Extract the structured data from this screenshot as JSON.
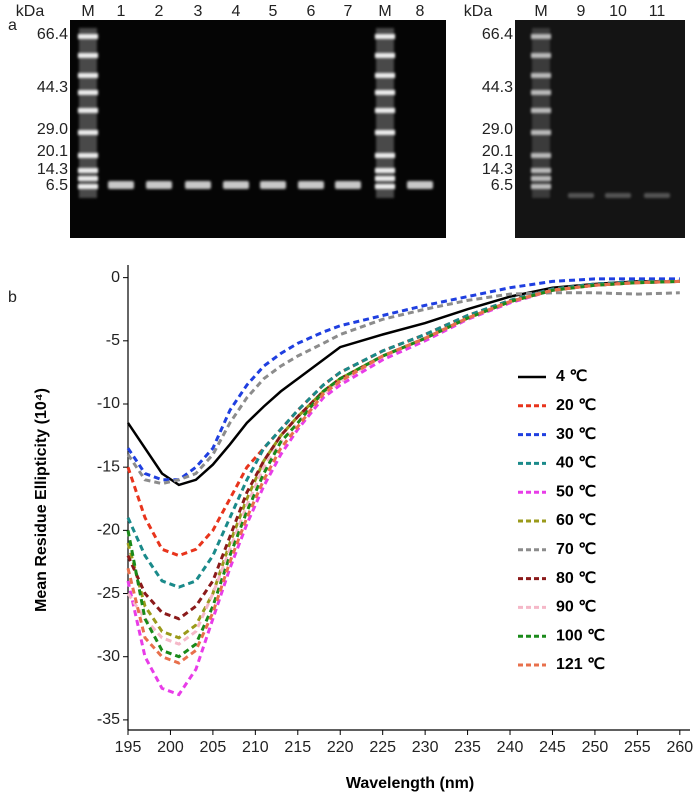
{
  "panel_labels": [
    "a",
    "b"
  ],
  "gels": [
    {
      "unit": "kDa",
      "lanes": [
        "M",
        "1",
        "2",
        "3",
        "4",
        "5",
        "6",
        "7",
        "M",
        "8"
      ],
      "markers": [
        "66.4",
        "44.3",
        "29.0",
        "20.1",
        "14.3",
        "6.5"
      ]
    },
    {
      "unit": "kDa",
      "lanes": [
        "M",
        "9",
        "10",
        "11"
      ],
      "markers": [
        "66.4",
        "44.3",
        "29.0",
        "20.1",
        "14.3",
        "6.5"
      ]
    }
  ],
  "chart_data": {
    "type": "line",
    "xlabel": "Wavelength (nm)",
    "ylabel": "Mean Residue Ellipticity (10⁴)",
    "x": [
      195,
      197,
      199,
      201,
      203,
      205,
      207,
      209,
      211,
      213,
      215,
      218,
      220,
      225,
      230,
      235,
      240,
      245,
      250,
      255,
      260
    ],
    "xlim": [
      195,
      261.2
    ],
    "xticks": [
      195,
      200,
      205,
      210,
      215,
      220,
      225,
      230,
      235,
      240,
      245,
      250,
      255,
      260
    ],
    "ylim": [
      -35.8,
      1
    ],
    "yticks": [
      -35,
      -30,
      -25,
      -20,
      -15,
      -10,
      -5,
      0
    ],
    "series": [
      {
        "name": "4 ℃",
        "color": "#000000",
        "line_style": "solid",
        "values": [
          -11.5,
          -13.5,
          -15.5,
          -16.4,
          -16,
          -14.8,
          -13.2,
          -11.5,
          -10.2,
          -9,
          -8,
          -6.5,
          -5.5,
          -4.5,
          -3.6,
          -2.5,
          -1.5,
          -0.8,
          -0.5,
          -0.3,
          -0.3
        ]
      },
      {
        "name": "20 ℃",
        "color": "#e8341c",
        "line_style": "dashed",
        "values": [
          -15,
          -19,
          -21.5,
          -22,
          -21.5,
          -20,
          -17.5,
          -15,
          -13.5,
          -12,
          -10.5,
          -8.5,
          -7.5,
          -5.8,
          -4.5,
          -3,
          -1.8,
          -0.9,
          -0.5,
          -0.3,
          -0.3
        ]
      },
      {
        "name": "30 ℃",
        "color": "#1f3fe0",
        "line_style": "dashed",
        "values": [
          -13.5,
          -15.5,
          -16,
          -16,
          -15,
          -13.5,
          -10.5,
          -8.5,
          -7,
          -6,
          -5.2,
          -4.3,
          -3.8,
          -3,
          -2.2,
          -1.5,
          -0.8,
          -0.3,
          -0.1,
          -0.1,
          -0.1
        ]
      },
      {
        "name": "40 ℃",
        "color": "#1a8a8a",
        "line_style": "dashed",
        "values": [
          -19,
          -22,
          -24,
          -24.5,
          -24,
          -22,
          -19,
          -16,
          -13.5,
          -12,
          -10.5,
          -8.5,
          -7.5,
          -5.8,
          -4.5,
          -3,
          -1.8,
          -0.9,
          -0.5,
          -0.3,
          -0.3
        ]
      },
      {
        "name": "50 ℃",
        "color": "#e83ce8",
        "line_style": "dashed",
        "values": [
          -24,
          -30,
          -32.5,
          -33,
          -31,
          -27,
          -23,
          -19.5,
          -16.5,
          -14,
          -12,
          -9.5,
          -8.5,
          -6.5,
          -5,
          -3.3,
          -2,
          -1,
          -0.6,
          -0.4,
          -0.3
        ]
      },
      {
        "name": "60 ℃",
        "color": "#9a9a1a",
        "line_style": "dashed",
        "values": [
          -21,
          -26,
          -28,
          -28.5,
          -27.5,
          -25,
          -21,
          -17.5,
          -14.5,
          -12.5,
          -11,
          -9,
          -8,
          -6.2,
          -4.8,
          -3.2,
          -1.9,
          -1,
          -0.6,
          -0.4,
          -0.3
        ]
      },
      {
        "name": "70 ℃",
        "color": "#8c8c8c",
        "line_style": "dashed",
        "values": [
          -14,
          -16,
          -16.3,
          -16,
          -15.5,
          -14,
          -11.5,
          -9.5,
          -8,
          -7,
          -6.2,
          -5.2,
          -4.5,
          -3.3,
          -2.5,
          -1.8,
          -1.3,
          -1.2,
          -1.2,
          -1.3,
          -1.2
        ]
      },
      {
        "name": "80 ℃",
        "color": "#8b1a1a",
        "line_style": "dashed",
        "values": [
          -22,
          -25,
          -26.5,
          -27,
          -26,
          -24,
          -20.5,
          -17,
          -14.5,
          -12.5,
          -11,
          -9,
          -8,
          -6.2,
          -4.8,
          -3.2,
          -1.9,
          -1,
          -0.6,
          -0.4,
          -0.3
        ]
      },
      {
        "name": "90 ℃",
        "color": "#f5b8c8",
        "line_style": "dashed",
        "values": [
          -25,
          -27,
          -28.5,
          -29,
          -28,
          -25,
          -21.5,
          -18,
          -15,
          -13,
          -11.5,
          -9.2,
          -8.2,
          -6.2,
          -4.8,
          -3.2,
          -1.9,
          -1,
          -0.6,
          -0.4,
          -0.3
        ]
      },
      {
        "name": "100 ℃",
        "color": "#1a8a1a",
        "line_style": "dashed",
        "values": [
          -20,
          -27,
          -29.5,
          -30,
          -29,
          -26,
          -22,
          -18.5,
          -15.5,
          -13,
          -11.5,
          -9,
          -8,
          -6.2,
          -4.8,
          -3.2,
          -1.9,
          -1,
          -0.6,
          -0.4,
          -0.3
        ]
      },
      {
        "name": "121 ℃",
        "color": "#e8704c",
        "line_style": "dashed",
        "values": [
          -23,
          -28.5,
          -30,
          -30.5,
          -29.5,
          -26.5,
          -22.5,
          -19,
          -16,
          -13.5,
          -11.8,
          -9.2,
          -8.2,
          -6.2,
          -4.8,
          -3.2,
          -1.9,
          -1,
          -0.6,
          -0.4,
          -0.3
        ]
      }
    ]
  }
}
